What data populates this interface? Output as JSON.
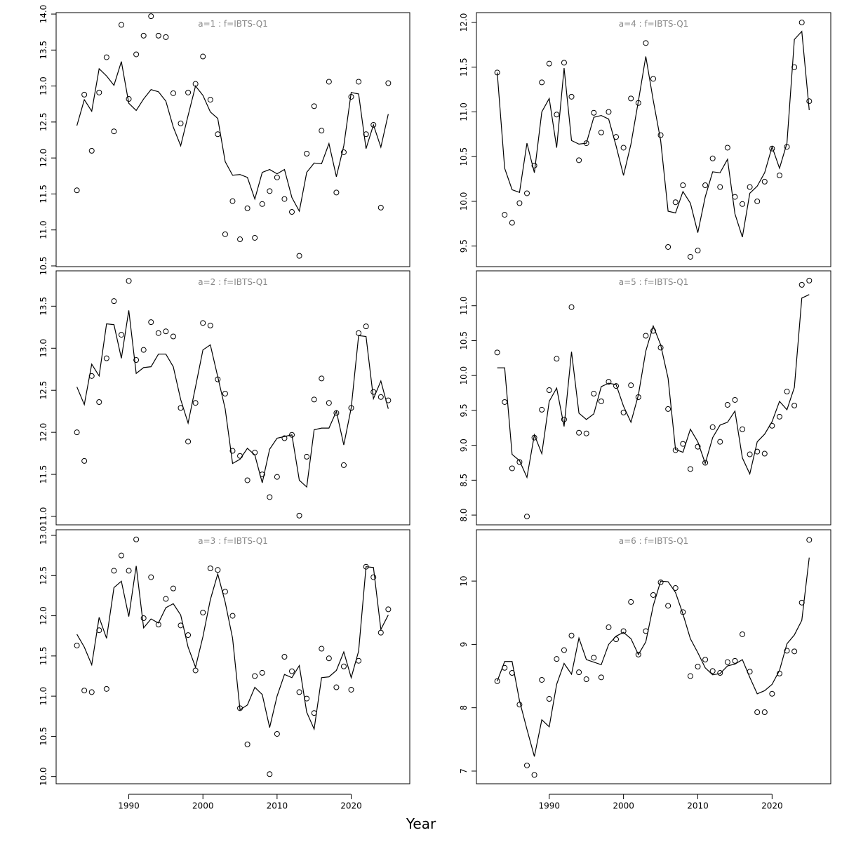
{
  "xlabel": "Year",
  "chart_data": [
    {
      "type": "line",
      "title": "a=1 : f=IBTS-Q1",
      "x": [
        1983,
        1984,
        1985,
        1986,
        1987,
        1988,
        1989,
        1990,
        1991,
        1992,
        1993,
        1994,
        1995,
        1996,
        1997,
        1998,
        1999,
        2000,
        2001,
        2002,
        2003,
        2004,
        2005,
        2006,
        2007,
        2008,
        2009,
        2010,
        2011,
        2012,
        2013,
        2014,
        2015,
        2016,
        2017,
        2018,
        2019,
        2020,
        2021,
        2022,
        2023,
        2024,
        2025
      ],
      "xlim": [
        1980.2,
        2027.9
      ],
      "ylim": [
        10.49,
        14.02
      ],
      "yticks": [
        10.5,
        {
          "value": 11,
          "label": "11.0"
        },
        11.5,
        {
          "value": 12,
          "label": "12.0"
        },
        12.5,
        {
          "value": 13,
          "label": "13.0"
        },
        13.5,
        {
          "value": 14,
          "label": "14.0"
        }
      ],
      "series": [
        {
          "marker": "line",
          "color": "#000000",
          "values": [
            12.45,
            12.81,
            12.65,
            13.24,
            13.14,
            13.01,
            13.34,
            12.76,
            12.66,
            12.82,
            12.95,
            12.92,
            12.79,
            12.43,
            12.17,
            12.59,
            13.0,
            12.87,
            12.64,
            12.55,
            11.95,
            11.76,
            11.77,
            11.73,
            11.43,
            11.8,
            11.84,
            11.78,
            11.84,
            11.45,
            11.26,
            11.8,
            11.93,
            11.92,
            12.2,
            11.74,
            12.17,
            12.91,
            12.89,
            12.13,
            12.46,
            12.15,
            12.61
          ]
        },
        {
          "marker": "circle",
          "color": "#000000",
          "values": [
            11.55,
            12.88,
            12.1,
            12.91,
            13.4,
            12.37,
            13.85,
            12.82,
            13.44,
            13.7,
            13.97,
            13.7,
            13.68,
            12.9,
            12.48,
            12.91,
            13.03,
            13.41,
            12.81,
            12.33,
            10.94,
            11.4,
            10.87,
            11.3,
            10.89,
            11.36,
            11.54,
            11.73,
            11.43,
            11.25,
            10.64,
            12.06,
            12.72,
            12.38,
            13.06,
            11.52,
            12.08,
            12.85,
            13.06,
            12.33,
            12.46,
            11.31,
            13.04
          ]
        }
      ]
    },
    {
      "type": "line",
      "title": "a=2 : f=IBTS-Q1",
      "x": [
        1983,
        1984,
        1985,
        1986,
        1987,
        1988,
        1989,
        1990,
        1991,
        1992,
        1993,
        1994,
        1995,
        1996,
        1997,
        1998,
        1999,
        2000,
        2001,
        2002,
        2003,
        2004,
        2005,
        2006,
        2007,
        2008,
        2009,
        2010,
        2011,
        2012,
        2013,
        2014,
        2015,
        2016,
        2017,
        2018,
        2019,
        2020,
        2021,
        2022,
        2023,
        2024,
        2025
      ],
      "xlim": [
        1980.2,
        2027.9
      ],
      "ylim": [
        10.9,
        13.92
      ],
      "yticks": [
        {
          "value": 11,
          "label": "11.0"
        },
        11.5,
        {
          "value": 12,
          "label": "12.0"
        },
        12.5,
        {
          "value": 13,
          "label": "13.0"
        },
        13.5
      ],
      "series": [
        {
          "marker": "line",
          "color": "#000000",
          "values": [
            12.54,
            12.33,
            12.81,
            12.67,
            13.29,
            13.28,
            12.88,
            13.45,
            12.7,
            12.77,
            12.78,
            12.93,
            12.93,
            12.78,
            12.39,
            12.11,
            12.54,
            12.98,
            13.04,
            12.66,
            12.28,
            11.63,
            11.68,
            11.81,
            11.73,
            11.4,
            11.8,
            11.93,
            11.95,
            11.97,
            11.43,
            11.35,
            12.03,
            12.05,
            12.05,
            12.25,
            11.85,
            12.29,
            13.15,
            13.14,
            12.4,
            12.61,
            12.28
          ]
        },
        {
          "marker": "circle",
          "color": "#000000",
          "values": [
            12.0,
            11.66,
            12.67,
            12.36,
            12.88,
            13.56,
            13.16,
            13.8,
            12.86,
            12.98,
            13.31,
            13.18,
            13.2,
            13.14,
            12.29,
            11.89,
            12.35,
            13.3,
            13.27,
            12.63,
            12.46,
            11.78,
            11.72,
            11.43,
            11.76,
            11.5,
            11.23,
            11.47,
            11.93,
            11.97,
            11.01,
            11.71,
            12.39,
            12.64,
            12.35,
            12.23,
            11.61,
            12.29,
            13.18,
            13.26,
            12.48,
            12.42,
            12.38
          ]
        }
      ]
    },
    {
      "type": "line",
      "title": "a=3 : f=IBTS-Q1",
      "x": [
        1983,
        1984,
        1985,
        1986,
        1987,
        1988,
        1989,
        1990,
        1991,
        1992,
        1993,
        1994,
        1995,
        1996,
        1997,
        1998,
        1999,
        2000,
        2001,
        2002,
        2003,
        2004,
        2005,
        2006,
        2007,
        2008,
        2009,
        2010,
        2011,
        2012,
        2013,
        2014,
        2015,
        2016,
        2017,
        2018,
        2019,
        2020,
        2021,
        2022,
        2023,
        2024,
        2025
      ],
      "xlim": [
        1980.2,
        2027.9
      ],
      "ylim": [
        9.91,
        13.07
      ],
      "xticks": [
        1990,
        2000,
        2010,
        2020
      ],
      "yticks": [
        {
          "value": 10,
          "label": "10.0"
        },
        10.5,
        {
          "value": 11,
          "label": "11.0"
        },
        11.5,
        {
          "value": 12,
          "label": "12.0"
        },
        12.5,
        {
          "value": 13,
          "label": "13.0"
        }
      ],
      "series": [
        {
          "marker": "line",
          "color": "#000000",
          "values": [
            11.77,
            11.61,
            11.39,
            11.98,
            11.72,
            12.35,
            12.43,
            11.99,
            12.62,
            11.85,
            11.96,
            11.91,
            12.1,
            12.15,
            12.01,
            11.61,
            11.36,
            11.74,
            12.2,
            12.52,
            12.17,
            11.72,
            10.83,
            10.89,
            11.11,
            11.02,
            10.61,
            11.0,
            11.27,
            11.23,
            11.38,
            10.8,
            10.59,
            11.23,
            11.24,
            11.32,
            11.55,
            11.23,
            11.56,
            12.61,
            12.6,
            11.83,
            12.01
          ]
        },
        {
          "marker": "circle",
          "color": "#000000",
          "values": [
            11.63,
            11.07,
            11.05,
            11.82,
            11.09,
            12.56,
            12.75,
            12.56,
            12.95,
            11.97,
            12.48,
            11.89,
            12.21,
            12.34,
            11.88,
            11.76,
            11.32,
            12.04,
            12.59,
            12.57,
            12.3,
            12.0,
            10.85,
            10.4,
            11.25,
            11.29,
            10.03,
            10.53,
            11.49,
            11.31,
            11.05,
            10.97,
            10.79,
            11.59,
            11.47,
            11.11,
            11.37,
            11.08,
            11.44,
            12.61,
            12.48,
            11.79,
            12.08
          ]
        }
      ]
    },
    {
      "type": "line",
      "title": "a=4 : f=IBTS-Q1",
      "x": [
        1983,
        1984,
        1985,
        1986,
        1987,
        1988,
        1989,
        1990,
        1991,
        1992,
        1993,
        1994,
        1995,
        1996,
        1997,
        1998,
        1999,
        2000,
        2001,
        2002,
        2003,
        2004,
        2005,
        2006,
        2007,
        2008,
        2009,
        2010,
        2011,
        2012,
        2013,
        2014,
        2015,
        2016,
        2017,
        2018,
        2019,
        2020,
        2021,
        2022,
        2023,
        2024,
        2025
      ],
      "xlim": [
        1980.2,
        2027.9
      ],
      "ylim": [
        9.27,
        12.11
      ],
      "yticks": [
        9.5,
        {
          "value": 10,
          "label": "10.0"
        },
        10.5,
        {
          "value": 11,
          "label": "11.0"
        },
        11.5,
        {
          "value": 12,
          "label": "12.0"
        }
      ],
      "series": [
        {
          "marker": "line",
          "color": "#000000",
          "values": [
            11.44,
            10.37,
            10.13,
            10.1,
            10.65,
            10.32,
            11.0,
            11.15,
            10.6,
            11.49,
            10.68,
            10.64,
            10.65,
            10.94,
            10.96,
            10.92,
            10.62,
            10.29,
            10.64,
            11.12,
            11.62,
            11.13,
            10.68,
            9.89,
            9.87,
            10.11,
            9.98,
            9.65,
            10.05,
            10.33,
            10.32,
            10.47,
            9.86,
            9.6,
            10.09,
            10.17,
            10.32,
            10.61,
            10.37,
            10.65,
            11.81,
            11.9,
            11.02
          ]
        },
        {
          "marker": "circle",
          "color": "#000000",
          "values": [
            11.44,
            9.85,
            9.76,
            9.98,
            10.09,
            10.4,
            11.33,
            11.54,
            10.97,
            11.55,
            11.17,
            10.46,
            10.65,
            10.99,
            10.77,
            11.0,
            10.72,
            10.6,
            11.15,
            11.1,
            11.77,
            11.37,
            10.74,
            9.49,
            9.99,
            10.18,
            9.38,
            9.45,
            10.18,
            10.48,
            10.16,
            10.6,
            10.05,
            9.97,
            10.16,
            10.0,
            10.22,
            10.59,
            10.29,
            10.61,
            11.5,
            12.0,
            11.12
          ]
        }
      ]
    },
    {
      "type": "line",
      "title": "a=5 : f=IBTS-Q1",
      "x": [
        1983,
        1984,
        1985,
        1986,
        1987,
        1988,
        1989,
        1990,
        1991,
        1992,
        1993,
        1994,
        1995,
        1996,
        1997,
        1998,
        1999,
        2000,
        2001,
        2002,
        2003,
        2004,
        2005,
        2006,
        2007,
        2008,
        2009,
        2010,
        2011,
        2012,
        2013,
        2014,
        2015,
        2016,
        2017,
        2018,
        2019,
        2020,
        2021,
        2022,
        2023,
        2024,
        2025
      ],
      "xlim": [
        1980.2,
        2027.9
      ],
      "ylim": [
        7.86,
        11.5
      ],
      "yticks": [
        {
          "value": 8,
          "label": "8.0"
        },
        8.5,
        {
          "value": 9,
          "label": "9.0"
        },
        9.5,
        {
          "value": 10,
          "label": "10.0"
        },
        10.5,
        {
          "value": 11,
          "label": "11.0"
        }
      ],
      "series": [
        {
          "marker": "line",
          "color": "#000000",
          "values": [
            10.11,
            10.11,
            8.87,
            8.78,
            8.54,
            9.15,
            8.88,
            9.63,
            9.82,
            9.27,
            10.34,
            9.46,
            9.37,
            9.45,
            9.84,
            9.89,
            9.87,
            9.56,
            9.33,
            9.72,
            10.35,
            10.71,
            10.44,
            9.96,
            8.94,
            8.9,
            9.23,
            9.05,
            8.74,
            9.11,
            9.29,
            9.33,
            9.49,
            8.82,
            8.59,
            9.05,
            9.16,
            9.34,
            9.63,
            9.51,
            9.83,
            11.11,
            11.16
          ]
        },
        {
          "marker": "circle",
          "color": "#000000",
          "values": [
            10.33,
            9.62,
            8.67,
            8.76,
            7.98,
            9.11,
            9.51,
            9.79,
            10.24,
            9.37,
            10.98,
            9.18,
            9.17,
            9.74,
            9.63,
            9.91,
            9.85,
            9.47,
            9.86,
            9.69,
            10.57,
            10.64,
            10.4,
            9.52,
            8.93,
            9.02,
            8.66,
            8.98,
            8.75,
            9.26,
            9.05,
            9.58,
            9.65,
            9.23,
            8.87,
            8.91,
            8.88,
            9.28,
            9.41,
            9.77,
            9.57,
            11.3,
            11.36
          ]
        }
      ]
    },
    {
      "type": "line",
      "title": "a=6 : f=IBTS-Q1",
      "x": [
        1983,
        1984,
        1985,
        1986,
        1987,
        1988,
        1989,
        1990,
        1991,
        1992,
        1993,
        1994,
        1995,
        1996,
        1997,
        1998,
        1999,
        2000,
        2001,
        2002,
        2003,
        2004,
        2005,
        2006,
        2007,
        2008,
        2009,
        2010,
        2011,
        2012,
        2013,
        2014,
        2015,
        2016,
        2017,
        2018,
        2019,
        2020,
        2021,
        2022,
        2023,
        2024,
        2025
      ],
      "xlim": [
        1980.2,
        2027.9
      ],
      "ylim": [
        6.8,
        10.81
      ],
      "xticks": [
        1990,
        2000,
        2010,
        2020
      ],
      "yticks": [
        7,
        8,
        9,
        10
      ],
      "series": [
        {
          "marker": "line",
          "color": "#000000",
          "values": [
            8.42,
            8.73,
            8.73,
            8.11,
            7.66,
            7.23,
            7.81,
            7.7,
            8.37,
            8.7,
            8.53,
            9.1,
            8.76,
            8.72,
            8.68,
            9.0,
            9.13,
            9.19,
            9.09,
            8.84,
            9.04,
            9.61,
            10.0,
            9.99,
            9.82,
            9.48,
            9.09,
            8.87,
            8.63,
            8.52,
            8.54,
            8.66,
            8.69,
            8.76,
            8.48,
            8.22,
            8.27,
            8.37,
            8.59,
            9.01,
            9.15,
            9.38,
            10.37
          ]
        },
        {
          "marker": "circle",
          "color": "#000000",
          "values": [
            8.42,
            8.63,
            8.55,
            8.05,
            7.09,
            6.94,
            8.44,
            8.14,
            8.77,
            8.91,
            9.14,
            8.56,
            8.45,
            8.79,
            8.48,
            9.27,
            9.08,
            9.21,
            9.67,
            8.84,
            9.21,
            9.78,
            9.98,
            9.61,
            9.89,
            9.51,
            8.5,
            8.65,
            8.76,
            8.58,
            8.55,
            8.72,
            8.74,
            9.16,
            8.57,
            7.93,
            7.93,
            8.22,
            8.54,
            8.9,
            8.89,
            9.66,
            10.65
          ]
        }
      ]
    }
  ]
}
